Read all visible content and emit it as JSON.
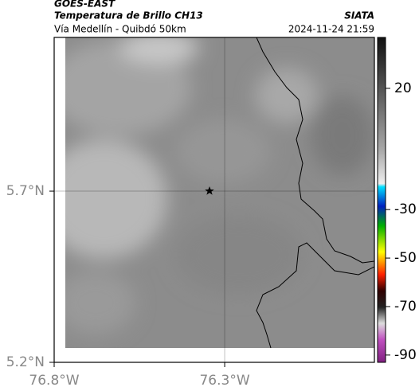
{
  "header": {
    "source": "GOES-EAST",
    "title": "Temperatura de Brillo CH13",
    "brand": "SIATA",
    "subtitle": "Vía Medellín - Quibdó 50km",
    "datetime": "2024-11-24 21:59"
  },
  "map": {
    "xlim": [
      -76.8,
      -75.861
    ],
    "ylim": [
      5.2,
      6.149
    ],
    "xticks": [
      {
        "value": -76.8,
        "label": "76.8°W"
      },
      {
        "value": -76.3,
        "label": "76.3°W"
      }
    ],
    "yticks": [
      {
        "value": 5.2,
        "label": "5.2°N"
      },
      {
        "value": 5.7,
        "label": "5.7°N"
      }
    ]
  },
  "colorbar": {
    "lim": [
      -93,
      41
    ],
    "ticks": [
      20,
      -30,
      -50,
      -70,
      -90
    ]
  }
}
